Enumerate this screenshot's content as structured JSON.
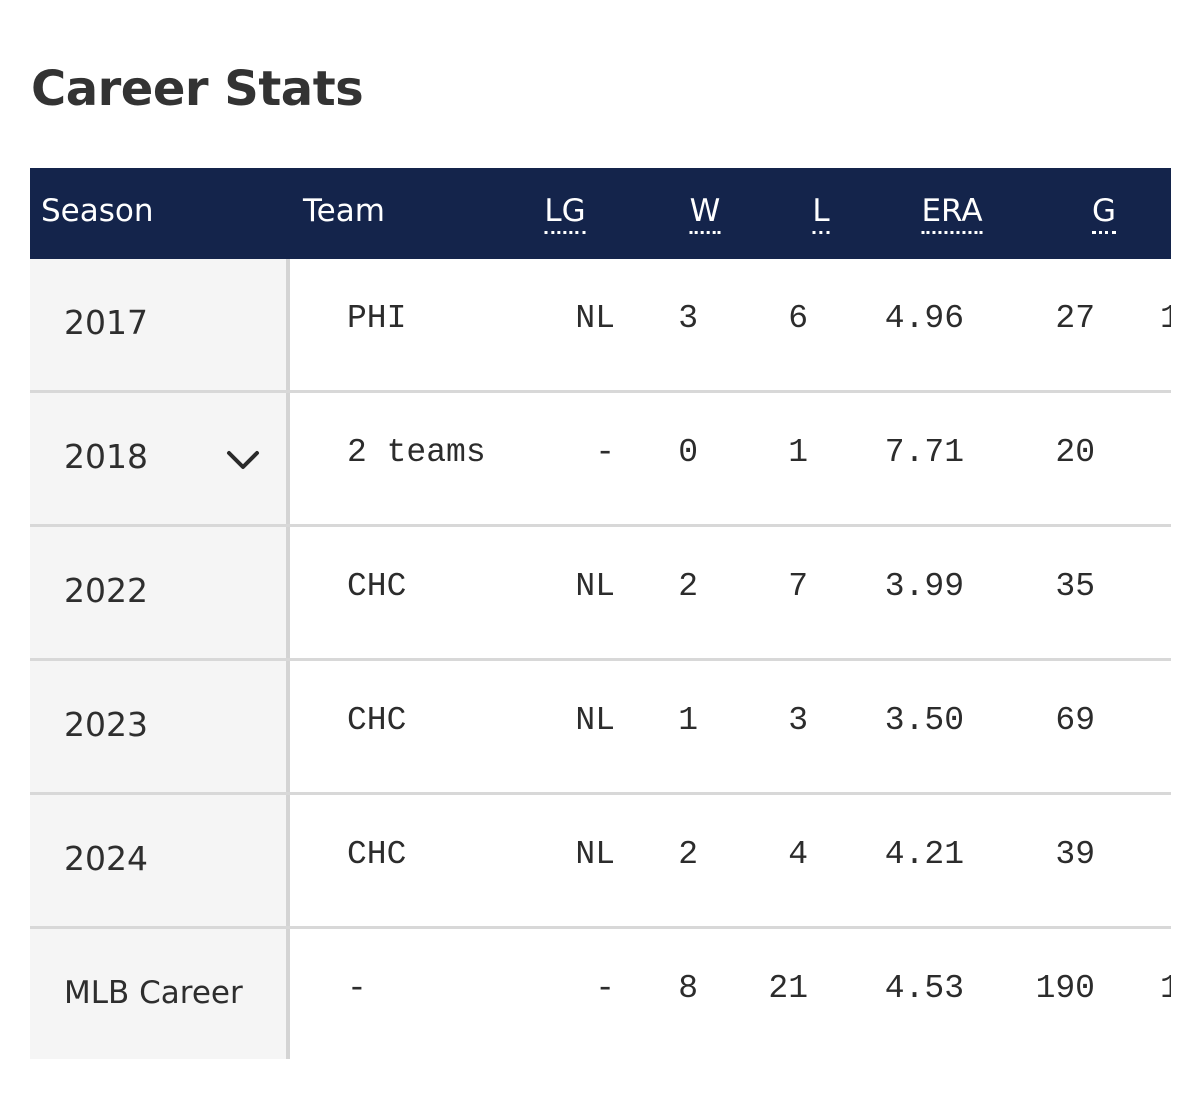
{
  "page": {
    "title": "Career Stats"
  },
  "colors": {
    "header_bg": "#14244b",
    "season_bg": "#f5f5f5",
    "divider": "#d8d8d8"
  },
  "table": {
    "headers": {
      "season": "Season",
      "team": "Team",
      "lg": "LG",
      "w": "W",
      "l": "L",
      "era": "ERA",
      "g": "G"
    },
    "rows": [
      {
        "season": "2017",
        "team": "PHI",
        "lg": "NL",
        "w": "3",
        "l": "6",
        "era": "4.96",
        "g": "27",
        "next_partial": "1",
        "expandable": false
      },
      {
        "season": "2018",
        "team": "2 teams",
        "lg": "-",
        "w": "0",
        "l": "1",
        "era": "7.71",
        "g": "20",
        "next_partial": "",
        "expandable": true,
        "expand_icon": "chevron-down-icon"
      },
      {
        "season": "2022",
        "team": "CHC",
        "lg": "NL",
        "w": "2",
        "l": "7",
        "era": "3.99",
        "g": "35",
        "next_partial": "",
        "expandable": false
      },
      {
        "season": "2023",
        "team": "CHC",
        "lg": "NL",
        "w": "1",
        "l": "3",
        "era": "3.50",
        "g": "69",
        "next_partial": "",
        "expandable": false
      },
      {
        "season": "2024",
        "team": "CHC",
        "lg": "NL",
        "w": "2",
        "l": "4",
        "era": "4.21",
        "g": "39",
        "next_partial": "",
        "expandable": false
      },
      {
        "season": "MLB Career",
        "team": "-",
        "lg": "-",
        "w": "8",
        "l": "21",
        "era": "4.53",
        "g": "190",
        "next_partial": "1",
        "expandable": false
      }
    ]
  }
}
